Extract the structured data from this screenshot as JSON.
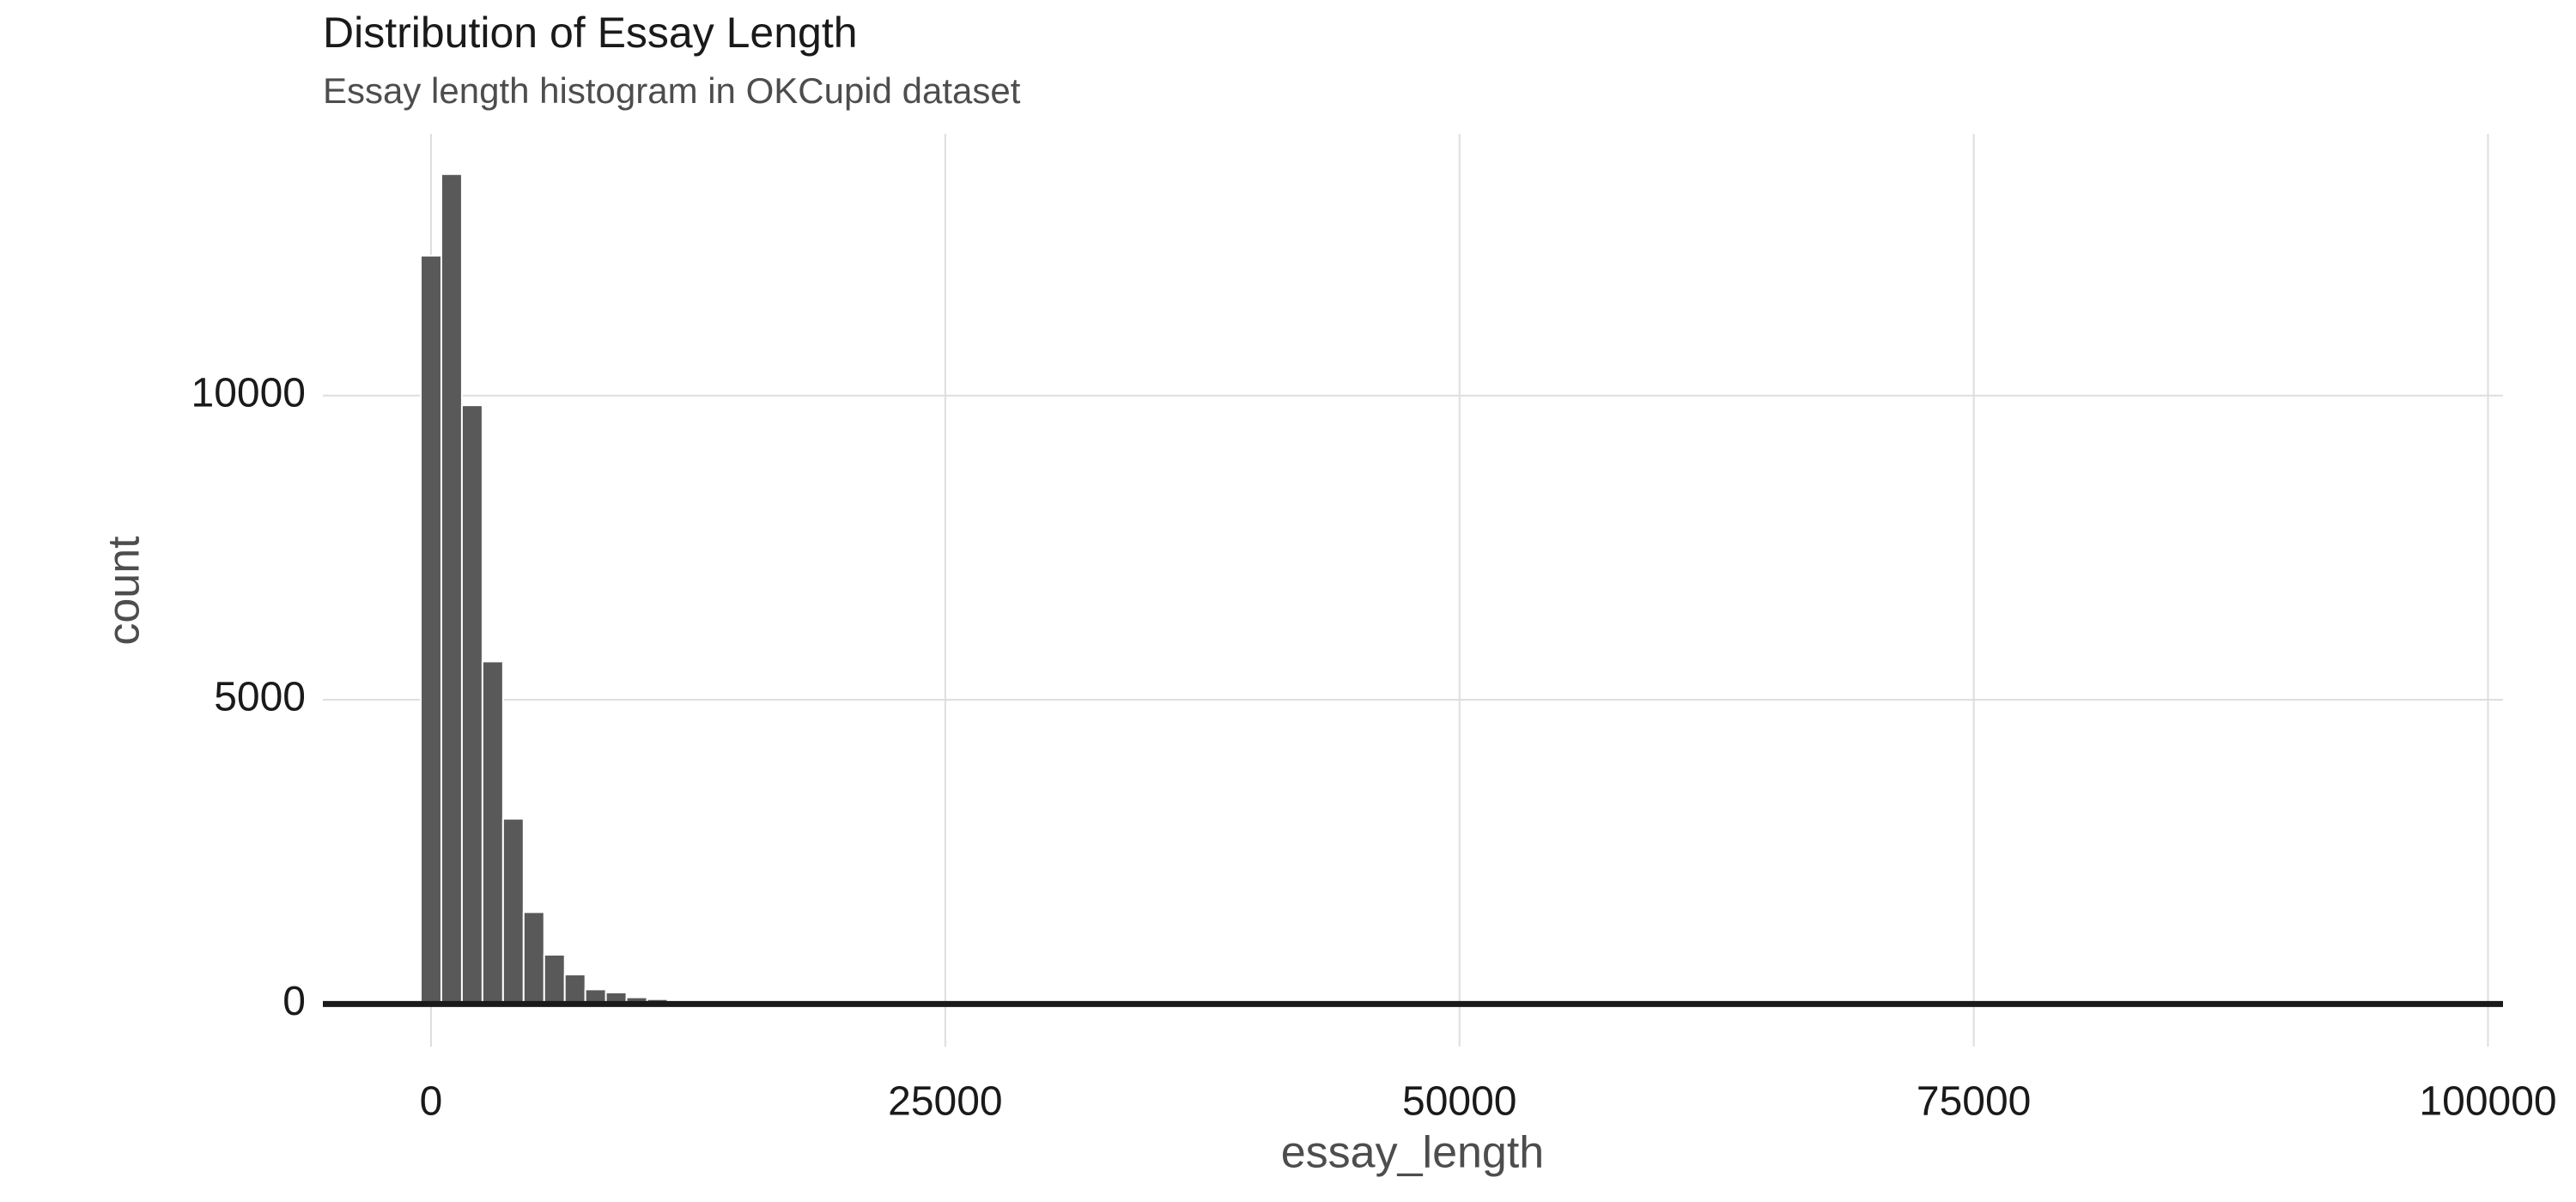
{
  "chart_data": {
    "type": "histogram",
    "title": "Distribution of Essay Length",
    "subtitle": "Essay length histogram in OKCupid dataset",
    "x_label": "essay_length",
    "y_label": "count",
    "bins": [
      -500,
      500,
      1500,
      2500,
      3500,
      4500,
      5500,
      6500,
      7500,
      8500,
      9500,
      10500,
      11500,
      12500,
      13500
    ],
    "counts": [
      12300,
      13640,
      9840,
      5630,
      3045,
      1510,
      810,
      485,
      240,
      190,
      110,
      80,
      50,
      30
    ],
    "color": "#595959",
    "xlim": [
      -5260,
      100730
    ],
    "xticks": [
      0,
      25000,
      50000,
      75000,
      100000
    ],
    "ylim": [
      -700,
      14300
    ],
    "yticks": [
      0,
      5000,
      10000
    ],
    "grid": true
  }
}
